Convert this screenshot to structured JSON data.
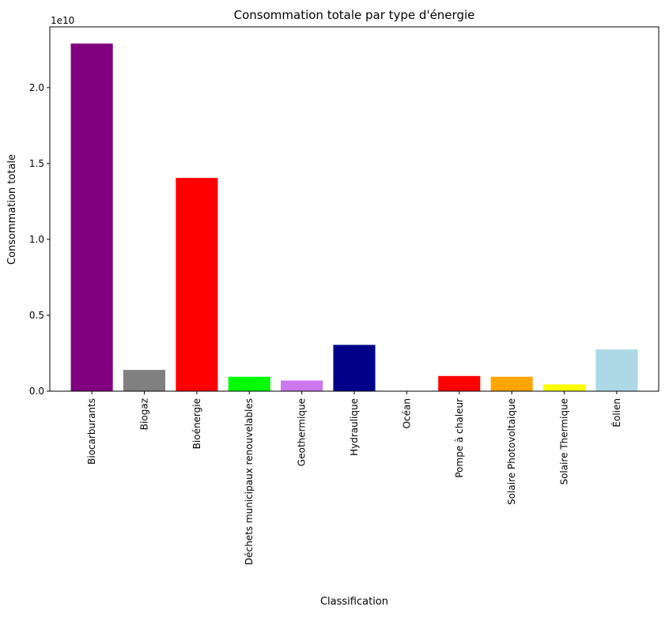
{
  "chart_data": {
    "type": "bar",
    "title": "Consommation totale par type d'énergie",
    "xlabel": "Classification",
    "ylabel": "Consommation totale",
    "offset_label": "1e10",
    "ylim": [
      0,
      2.4
    ],
    "yticks": [
      {
        "value": 0.0,
        "label": "0.0"
      },
      {
        "value": 0.5,
        "label": "0.5"
      },
      {
        "value": 1.0,
        "label": "1.0"
      },
      {
        "value": 1.5,
        "label": "1.5"
      },
      {
        "value": 2.0,
        "label": "2.0"
      }
    ],
    "categories": [
      "Biocarburants",
      "Biogaz",
      "Bioénergie",
      "Déchets municipaux renouvelables",
      "Geothermique",
      "Hydraulique",
      "Océan",
      "Pompe à chaleur",
      "Solaire Photovoltaique",
      "Solaire Thermique",
      "Éolien"
    ],
    "values": [
      2.29,
      0.14,
      1.405,
      0.095,
      0.07,
      0.305,
      0.0,
      0.1,
      0.095,
      0.045,
      0.275
    ],
    "colors": [
      "#800080",
      "#808080",
      "#ff0000",
      "#00ff00",
      "#cc77ee",
      "#00008b",
      "#000000",
      "#ff0000",
      "#ffa500",
      "#ffff00",
      "#add8e6"
    ],
    "grid": false
  }
}
